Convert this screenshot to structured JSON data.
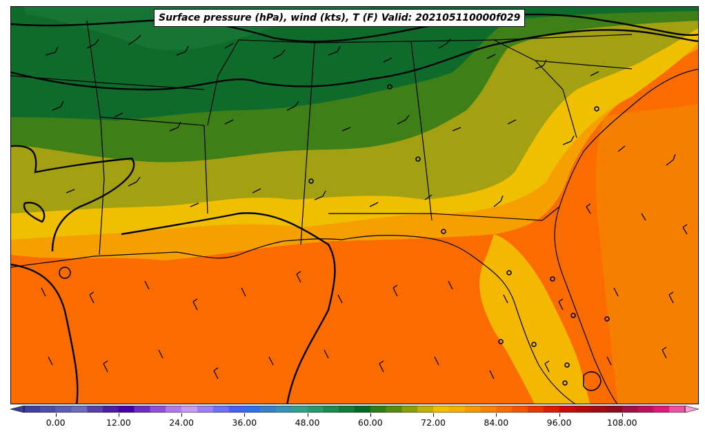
{
  "title": "Surface pressure (hPa), wind (kts), T (F) Valid: 202105110000f029",
  "colorbar": {
    "ticks": [
      "0.00",
      "12.00",
      "24.00",
      "36.00",
      "48.00",
      "60.00",
      "72.00",
      "84.00",
      "96.00",
      "108.00"
    ],
    "tick_values": [
      0,
      12,
      24,
      36,
      48,
      60,
      72,
      84,
      96,
      108
    ],
    "range": [
      -6,
      120
    ],
    "step": 3,
    "colors": [
      "#3f3f9f",
      "#4e4ea8",
      "#5d5db1",
      "#6c6cbb",
      "#5a3fa8",
      "#4a1fa0",
      "#4600a8",
      "#6a2fc0",
      "#9050d8",
      "#b07ae8",
      "#c89cf0",
      "#a080f5",
      "#7070f8",
      "#4a60f5",
      "#3070e8",
      "#3a80c8",
      "#3a90b0",
      "#35a08a",
      "#2a9a6a",
      "#1f8a50",
      "#147a3a",
      "#086828",
      "#2e7d16",
      "#5a8a10",
      "#8aa00a",
      "#c0b000",
      "#f0c000",
      "#f5b000",
      "#f79a00",
      "#f98300",
      "#fb6c00",
      "#f55500",
      "#ea3600",
      "#de1a00",
      "#cc0a0a",
      "#b80a0a",
      "#a30a14",
      "#8e0a1e",
      "#a01040",
      "#c0105c",
      "#e01878",
      "#f050a0"
    ],
    "extend_left": "#3a3a98",
    "extend_right": "#f8a0d0"
  },
  "legend_colors": {
    "dark_green": "#0a6a2a",
    "mid_green": "#2e7d16",
    "olive": "#a0a010",
    "yellow": "#f0c000",
    "orange": "#f59a00",
    "deep_orange": "#fb6c00"
  }
}
